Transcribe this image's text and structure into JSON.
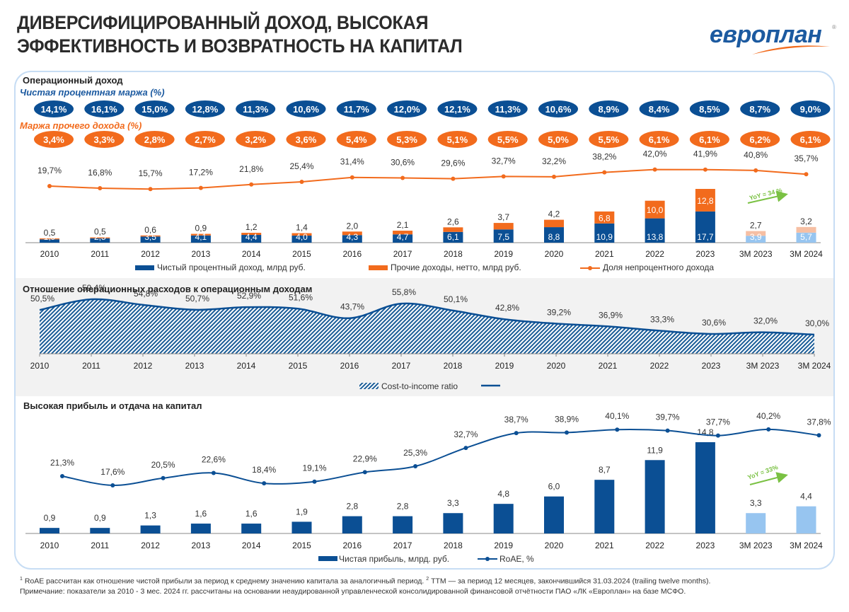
{
  "header": {
    "title_line1": "ДИВЕРСИФИЦИРОВАННЫЙ ДОХОД, ВЫСОКАЯ",
    "title_line2": "ЭФФЕКТИВНОСТЬ И ВОЗВРАТНОСТЬ НА КАПИТАЛ",
    "logo_text": "европлан",
    "logo_reg": "®"
  },
  "colors": {
    "dark_blue": "#0b4f94",
    "light_blue": "#97c5f0",
    "orange": "#f26b1d",
    "light_orange": "#f6bfa3",
    "green": "#7ac143",
    "frame": "#c7ddf4"
  },
  "sections": {
    "operating_income": {
      "heading": "Операционный доход",
      "nim_label": "Чистая процентная маржа (%)",
      "other_label": "Маржа прочего дохода (%)"
    },
    "cost_income": {
      "heading": "Отношение операционных расходов к операционным доходам"
    },
    "profit": {
      "heading": "Высокая прибыль и отдача на капитал"
    }
  },
  "footnotes": {
    "line1_sup1": "1",
    "line1_a": " RoAE рассчитан как отношение чистой прибыли за период к среднему значению капитала за аналогичный период.  ",
    "line1_sup2": "2",
    "line1_b": " TTM — за период 12 месяцев, закончившийся 31.03.2024 (trailing twelve months).",
    "line2": "Примечание: показатели за 2010 - 3 мес. 2024 гг.  рассчитаны на основании неаудированной управленческой консолидированной финансовой отчётности ПАО «ЛК «Европлан» на базе МСФО."
  },
  "chart_data": [
    {
      "type": "bar",
      "id": "operating_income",
      "title": "Операционный доход",
      "categories": [
        "2010",
        "2011",
        "2012",
        "2013",
        "2014",
        "2015",
        "2016",
        "2017",
        "2018",
        "2019",
        "2020",
        "2021",
        "2022",
        "2023",
        "3M 2023",
        "3M 2024"
      ],
      "stacked": true,
      "series": [
        {
          "name": "Чистый процентный доход, млрд руб.",
          "values": [
            1.9,
            2.5,
            3.5,
            4.1,
            4.4,
            4.0,
            4.3,
            4.7,
            6.1,
            7.5,
            8.8,
            10.9,
            13.8,
            17.7,
            3.9,
            5.7
          ],
          "labels": [
            "1,9",
            "2,5",
            "3,5",
            "4,1",
            "4,4",
            "4,0",
            "4,3",
            "4,7",
            "6,1",
            "7,5",
            "8,8",
            "10,9",
            "13,8",
            "17,7",
            "3,9",
            "5,7"
          ]
        },
        {
          "name": "Прочие доходы, нетто, млрд руб.",
          "values": [
            0.5,
            0.5,
            0.6,
            0.9,
            1.2,
            1.4,
            2.0,
            2.1,
            2.6,
            3.7,
            4.2,
            6.8,
            10.0,
            12.8,
            2.7,
            3.2
          ],
          "labels": [
            "0,5",
            "0,5",
            "0,6",
            "0,9",
            "1,2",
            "1,4",
            "2,0",
            "2,1",
            "2,6",
            "3,7",
            "4,2",
            "6,8",
            "10,0",
            "12,8",
            "2,7",
            "3,2"
          ]
        },
        {
          "name": "Доля непроцентного дохода",
          "type": "line",
          "unit": "%",
          "values": [
            19.7,
            16.8,
            15.7,
            17.2,
            21.8,
            25.4,
            31.4,
            30.6,
            29.6,
            32.7,
            32.2,
            38.2,
            42.0,
            41.9,
            40.8,
            35.7
          ],
          "labels": [
            "19,7%",
            "16,8%",
            "15,7%",
            "17,2%",
            "21,8%",
            "25,4%",
            "31,4%",
            "30,6%",
            "29,6%",
            "32,7%",
            "32,2%",
            "38,2%",
            "42,0%",
            "41,9%",
            "40,8%",
            "35,7%"
          ]
        }
      ],
      "badges": {
        "nim": {
          "name": "Чистая процентная маржа (%)",
          "values": [
            14.1,
            16.1,
            15.0,
            12.8,
            11.3,
            10.6,
            11.7,
            12.0,
            12.1,
            11.3,
            10.6,
            8.9,
            8.4,
            8.5,
            8.7,
            9.0
          ],
          "labels": [
            "14,1%",
            "16,1%",
            "15,0%",
            "12,8%",
            "11,3%",
            "10,6%",
            "11,7%",
            "12,0%",
            "12,1%",
            "11,3%",
            "10,6%",
            "8,9%",
            "8,4%",
            "8,5%",
            "8,7%",
            "9,0%"
          ]
        },
        "other_margin": {
          "name": "Маржа прочего дохода (%)",
          "values": [
            3.4,
            3.3,
            2.8,
            2.7,
            3.2,
            3.6,
            5.4,
            5.3,
            5.1,
            5.5,
            5.0,
            5.5,
            6.1,
            6.1,
            6.2,
            6.1
          ],
          "labels": [
            "3,4%",
            "3,3%",
            "2,8%",
            "2,7%",
            "3,2%",
            "3,6%",
            "5,4%",
            "5,3%",
            "5,1%",
            "5,5%",
            "5,0%",
            "5,5%",
            "6,1%",
            "6,1%",
            "6,2%",
            "6,1%"
          ]
        }
      },
      "annotation": "YoY = 34 %",
      "legend_position": "bottom"
    },
    {
      "type": "area",
      "id": "cost_income",
      "title": "Отношение операционных расходов к операционным доходам",
      "categories": [
        "2010",
        "2011",
        "2012",
        "2013",
        "2014",
        "2015",
        "2016",
        "2017",
        "2018",
        "2019",
        "2020",
        "2021",
        "2022",
        "2023",
        "3M 2023",
        "3M 2024"
      ],
      "series": [
        {
          "name": "Cost-to-income ratio",
          "unit": "%",
          "values": [
            50.5,
            59.4,
            54.8,
            50.7,
            52.9,
            51.6,
            43.7,
            55.8,
            50.1,
            42.8,
            39.2,
            36.9,
            33.3,
            30.6,
            32.0,
            30.0
          ],
          "labels": [
            "50,5%",
            "59,4%",
            "54,8%",
            "50,7%",
            "52,9%",
            "51,6%",
            "43,7%",
            "55,8%",
            "50,1%",
            "42,8%",
            "39,2%",
            "36,9%",
            "33,3%",
            "30,6%",
            "32,0%",
            "30,0%"
          ]
        }
      ],
      "legend_position": "bottom"
    },
    {
      "type": "bar",
      "id": "profit",
      "title": "Высокая прибыль и отдача на капитал",
      "categories": [
        "2010",
        "2011",
        "2012",
        "2013",
        "2014",
        "2015",
        "2016",
        "2017",
        "2018",
        "2019",
        "2020",
        "2021",
        "2022",
        "2023",
        "3M 2023",
        "3M 2024"
      ],
      "series": [
        {
          "name": "Чистая прибыль, млрд. руб.",
          "values": [
            0.9,
            0.9,
            1.3,
            1.6,
            1.6,
            1.9,
            2.8,
            2.8,
            3.3,
            4.8,
            6.0,
            8.7,
            11.9,
            14.8,
            3.3,
            4.4
          ],
          "labels": [
            "0,9",
            "0,9",
            "1,3",
            "1,6",
            "1,6",
            "1,9",
            "2,8",
            "2,8",
            "3,3",
            "4,8",
            "6,0",
            "8,7",
            "11,9",
            "14,8",
            "3,3",
            "4,4"
          ]
        },
        {
          "name": "RoAE, %",
          "type": "line",
          "unit": "%",
          "values": [
            21.3,
            17.6,
            20.5,
            22.6,
            18.4,
            19.1,
            22.9,
            25.3,
            32.7,
            38.7,
            38.9,
            40.1,
            39.7,
            37.7,
            40.2,
            37.8
          ],
          "labels": [
            "21,3%",
            "17,6%",
            "20,5%",
            "22,6%",
            "18,4%",
            "19,1%",
            "22,9%",
            "25,3%",
            "32,7%",
            "38,7%",
            "38,9%",
            "40,1%",
            "39,7%",
            "37,7%",
            "40,2%",
            "37,8%"
          ]
        }
      ],
      "annotation": "YoY = 33%",
      "legend_position": "bottom"
    }
  ]
}
